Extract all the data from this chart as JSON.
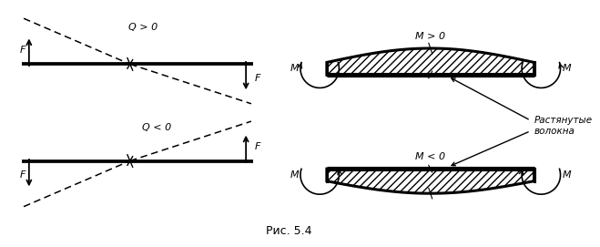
{
  "bg_color": "#ffffff",
  "line_color": "#000000",
  "fig_width": 6.59,
  "fig_height": 2.71,
  "dpi": 100,
  "label_Q_pos": "Q > 0",
  "label_Q_neg": "Q < 0",
  "label_M_pos": "M > 0",
  "label_M_neg": "M < 0",
  "label_F": "F",
  "label_M": "M",
  "label_rastyanutye": "Растянутые\nволокна",
  "caption": "Рис. 5.4"
}
